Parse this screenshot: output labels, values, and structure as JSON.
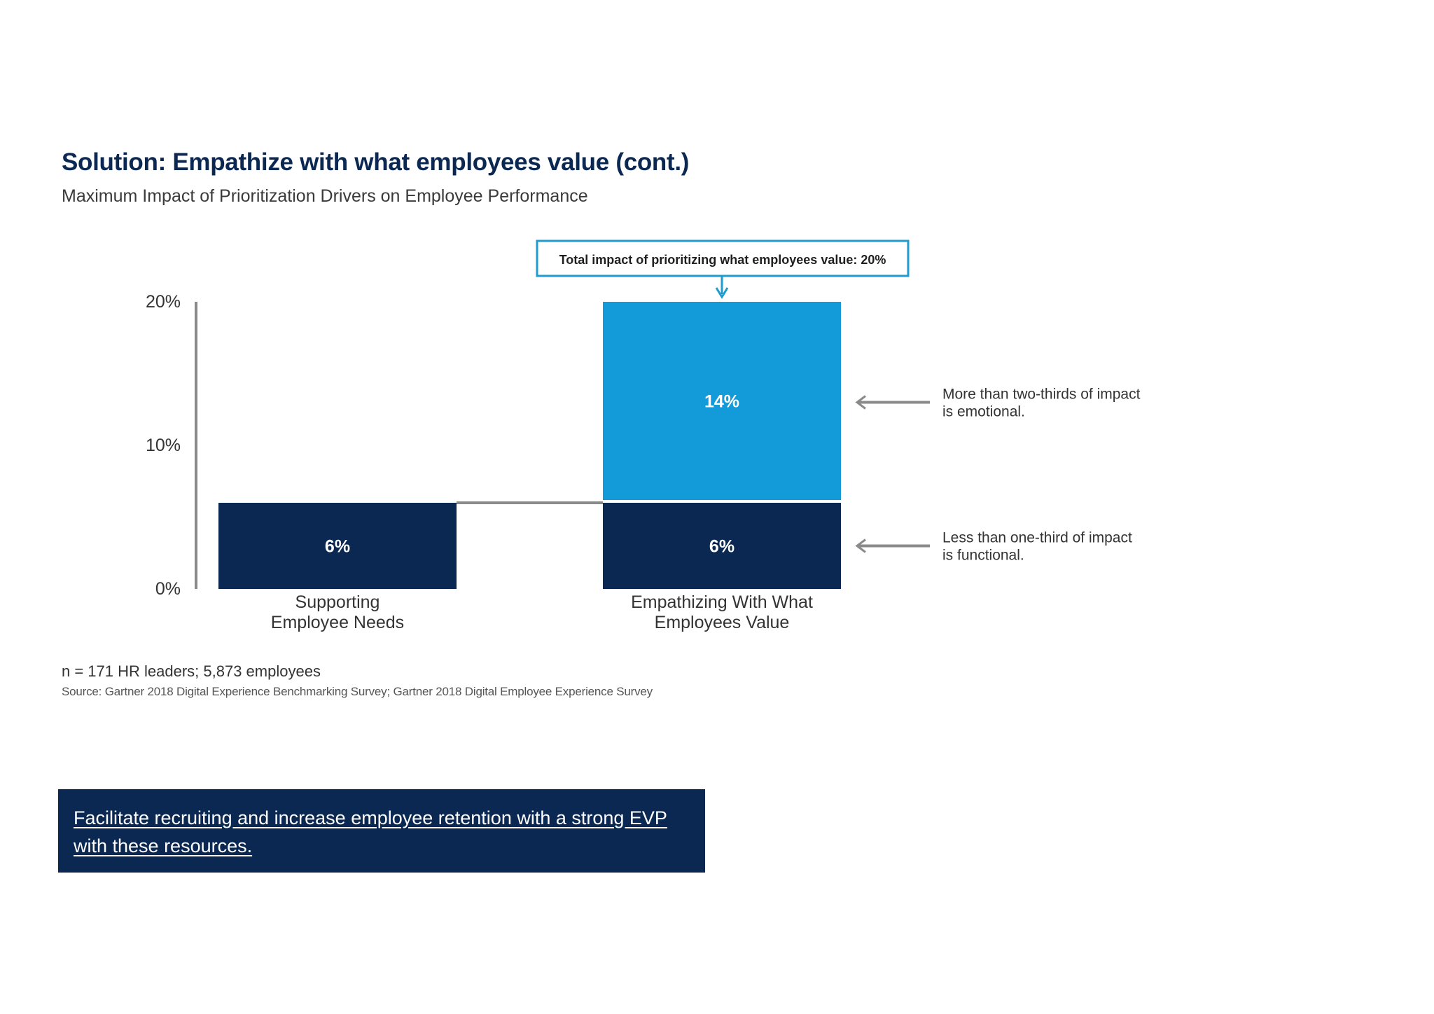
{
  "header": {
    "title": "Solution: Empathize with what employees value (cont.)",
    "subtitle": "Maximum Impact of Prioritization Drivers on Employee Performance"
  },
  "chart_data": {
    "type": "bar",
    "stacked": true,
    "categories": [
      "Supporting Employee Needs",
      "Empathizing With What Employees Value"
    ],
    "category_label_lines": [
      [
        "Supporting",
        "Employee Needs"
      ],
      [
        "Empathizing With What",
        "Employees Value"
      ]
    ],
    "series": [
      {
        "name": "",
        "values": [
          6,
          6
        ],
        "labels": [
          "6%",
          "6%"
        ],
        "color": "#0b2852"
      },
      {
        "name": "",
        "values": [
          0,
          14
        ],
        "labels": [
          "",
          "14%"
        ],
        "color": "#129bd8"
      }
    ],
    "ylim": [
      0,
      20
    ],
    "yticks": [
      0,
      10,
      20
    ],
    "ytick_labels": [
      "0%",
      "10%",
      "20%"
    ],
    "xlabel": "",
    "ylabel": "",
    "grid": false,
    "legend": "none",
    "total_annotation": "Total impact of prioritizing what employees value: 20%",
    "annotations": [
      {
        "lines": [
          "More than two-thirds of impact",
          "is emotional."
        ],
        "target": "14%"
      },
      {
        "lines": [
          "Less than one-third of impact",
          "is functional."
        ],
        "target": "6%"
      }
    ],
    "colors": {
      "navy": "#0b2852",
      "light_blue": "#129bd8",
      "annotation_border": "#1f9bcf",
      "axis": "#8a8a8a"
    }
  },
  "footnote": {
    "sample": "n = 171 HR leaders; 5,873 employees",
    "source": "Source: Gartner 2018 Digital Experience Benchmarking Survey; Gartner 2018 Digital Employee Experience Survey"
  },
  "cta": {
    "text": "Facilitate recruiting and increase employee retention with a strong EVP with these resources. "
  }
}
